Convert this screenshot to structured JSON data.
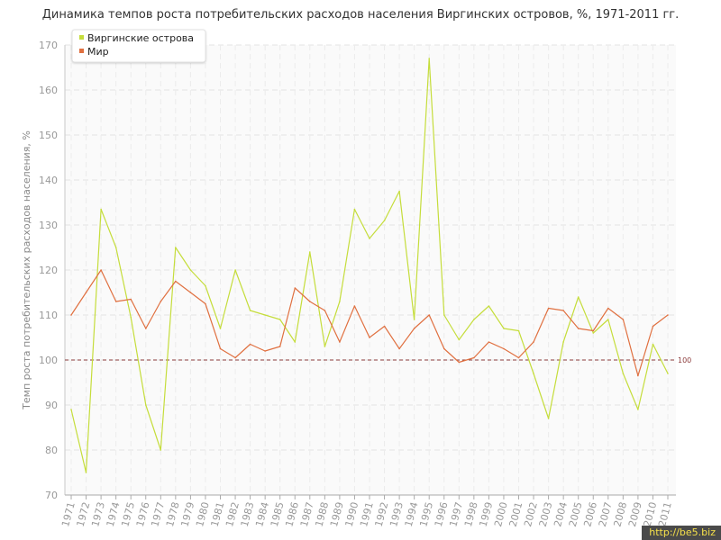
{
  "chart_data": {
    "type": "line",
    "title": "Динамика темпов роста потребительских расходов населения Виргинских островов, %, 1971-2011 гг.",
    "ylabel": "Темп роста потребительских расходов населения, %",
    "xlabel": "",
    "ylim": [
      70,
      170
    ],
    "yticks": [
      70,
      80,
      90,
      100,
      110,
      120,
      130,
      140,
      150,
      160,
      170
    ],
    "grid": true,
    "legend_position": "top-left",
    "reference_line": {
      "value": 100,
      "label": "100",
      "color": "#8b3a3a"
    },
    "x": [
      "1971",
      "1972",
      "1973",
      "1974",
      "1975",
      "1976",
      "1977",
      "1978",
      "1979",
      "1980",
      "1981",
      "1982",
      "1983",
      "1984",
      "1985",
      "1986",
      "1987",
      "1988",
      "1989",
      "1990",
      "1991",
      "1992",
      "1993",
      "1994",
      "1995",
      "1996",
      "1997",
      "1998",
      "1999",
      "2000",
      "2001",
      "2002",
      "2003",
      "2004",
      "2005",
      "2006",
      "2007",
      "2008",
      "2009",
      "2010",
      "2011"
    ],
    "series": [
      {
        "name": "Виргинские острова",
        "color": "#c5dd3b",
        "values": [
          89,
          75,
          133.5,
          125,
          109.5,
          90,
          80,
          125,
          120,
          116.5,
          107,
          120,
          111,
          110,
          109,
          104,
          124,
          103,
          113,
          133.5,
          127,
          131,
          137.5,
          109,
          167,
          110,
          104.5,
          109,
          112,
          107,
          106.5,
          97,
          87,
          104,
          114,
          106,
          109,
          97,
          89,
          103.5,
          97
        ]
      },
      {
        "name": "Мир",
        "color": "#e07040",
        "values": [
          110,
          115,
          120,
          113,
          113.5,
          107,
          113,
          117.5,
          115,
          112.5,
          102.5,
          100.5,
          103.5,
          102,
          103,
          116,
          113,
          111,
          104,
          112,
          105,
          107.5,
          102.5,
          107,
          110,
          102.5,
          99.5,
          100.5,
          104,
          102.5,
          100.5,
          104,
          111.5,
          111,
          107,
          106.5,
          111.5,
          109,
          96.5,
          107.5,
          110
        ]
      }
    ]
  },
  "watermark": "http://be5.biz"
}
